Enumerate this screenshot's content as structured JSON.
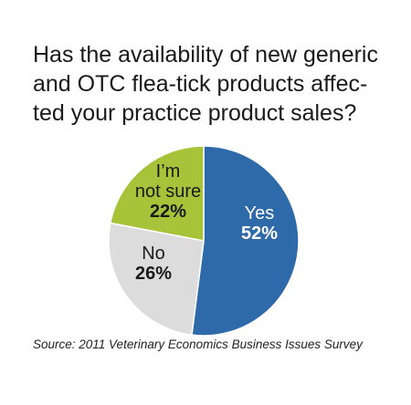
{
  "chart_data": {
    "type": "pie",
    "title_lines": [
      "Has the availability of new generic",
      "and OTC flea-tick products affec-",
      "ted your practice product sales?"
    ],
    "slices": [
      {
        "label_lines": [
          "Yes"
        ],
        "value": 52,
        "value_label": "52%",
        "color": "#2e6aa9",
        "text_color": "#ffffff"
      },
      {
        "label_lines": [
          "No"
        ],
        "value": 26,
        "value_label": "26%",
        "color": "#dcdcdc",
        "text_color": "#1a1a1a"
      },
      {
        "label_lines": [
          "I’m",
          "not sure"
        ],
        "value": 22,
        "value_label": "22%",
        "color": "#a6c33a",
        "text_color": "#1a1a1a"
      }
    ],
    "start_angle_deg": 0,
    "direction": "clockwise",
    "slice_border_color": "#ffffff"
  },
  "source": {
    "prefix": "Source: 2011 Veterinary Economics ",
    "emphasis": "Business Issues Survey"
  }
}
